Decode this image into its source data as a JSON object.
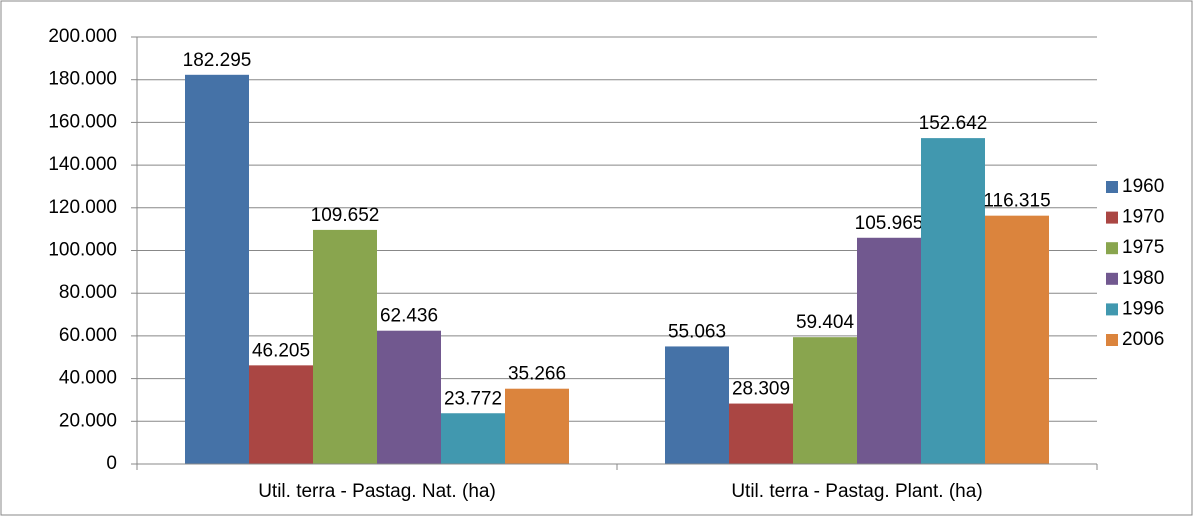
{
  "chart_data": {
    "type": "bar",
    "categories": [
      "Util. terra - Pastag. Nat. (ha)",
      "Util. terra - Pastag. Plant. (ha)"
    ],
    "series": [
      {
        "name": "1960",
        "color": "#4572a7",
        "values": [
          182295,
          55063
        ],
        "value_labels": [
          "182.295",
          "55.063"
        ]
      },
      {
        "name": "1970",
        "color": "#aa4643",
        "values": [
          46205,
          28309
        ],
        "value_labels": [
          "46.205",
          "28.309"
        ]
      },
      {
        "name": "1975",
        "color": "#89a54e",
        "values": [
          109652,
          59404
        ],
        "value_labels": [
          "109.652",
          "59.404"
        ]
      },
      {
        "name": "1980",
        "color": "#71588f",
        "values": [
          62436,
          105965
        ],
        "value_labels": [
          "62.436",
          "105.965"
        ]
      },
      {
        "name": "1996",
        "color": "#4198af",
        "values": [
          23772,
          152642
        ],
        "value_labels": [
          "23.772",
          "152.642"
        ]
      },
      {
        "name": "2006",
        "color": "#db843d",
        "values": [
          35266,
          116315
        ],
        "value_labels": [
          "35.266",
          "116.315"
        ]
      }
    ],
    "ylim": [
      0,
      200000
    ],
    "yticks": [
      0,
      {
        "value": 20000,
        "label": "20.000"
      },
      {
        "value": 40000,
        "label": "40.000"
      },
      {
        "value": 60000,
        "label": "60.000"
      },
      {
        "value": 80000,
        "label": "80.000"
      },
      {
        "value": 100000,
        "label": "100.000"
      },
      {
        "value": 120000,
        "label": "120.000"
      },
      {
        "value": 140000,
        "label": "140.000"
      },
      {
        "value": 160000,
        "label": "160.000"
      },
      {
        "value": 180000,
        "label": "180.000"
      },
      {
        "value": 200000,
        "label": "200.000"
      }
    ],
    "grid": true,
    "legend": "right"
  }
}
